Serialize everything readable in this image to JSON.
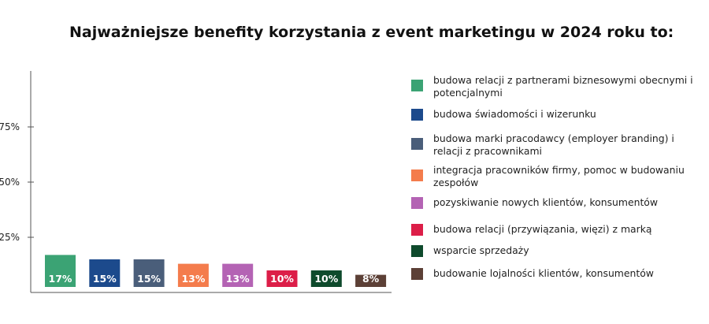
{
  "chart_data": {
    "type": "bar",
    "title": "Najważniejsze benefity korzystania z event marketingu w 2024 roku to:",
    "xlabel": "",
    "ylabel": "",
    "ylim": [
      0,
      100
    ],
    "y_ticks": [
      "25%",
      "50%",
      "75%"
    ],
    "y_tick_values": [
      25,
      50,
      75
    ],
    "grid": false,
    "legend_position": "right",
    "categories": [
      "budowa relacji z partnerami biznesowymi obecnymi i potencjalnymi",
      "budowa świadomości i wizerunku",
      "budowa marki pracodawcy (employer branding) i relacji z pracownikami",
      "integracja pracowników firmy, pomoc w budowaniu zespołów",
      "pozyskiwanie nowych klientów, konsumentów",
      "budowa relacji (przywiązania, więzi) z marką",
      "wsparcie sprzedaży",
      "budowanie lojalności klientów, konsumentów"
    ],
    "values": [
      17,
      15,
      15,
      13,
      13,
      10,
      10,
      8
    ],
    "value_labels": [
      "17%",
      "15%",
      "15%",
      "13%",
      "13%",
      "10%",
      "10%",
      "8%"
    ],
    "colors": [
      "#3ba374",
      "#1c4a8c",
      "#4a5e7a",
      "#f47c4c",
      "#b463b4",
      "#dc1e48",
      "#0e4a2c",
      "#5c4036"
    ]
  }
}
